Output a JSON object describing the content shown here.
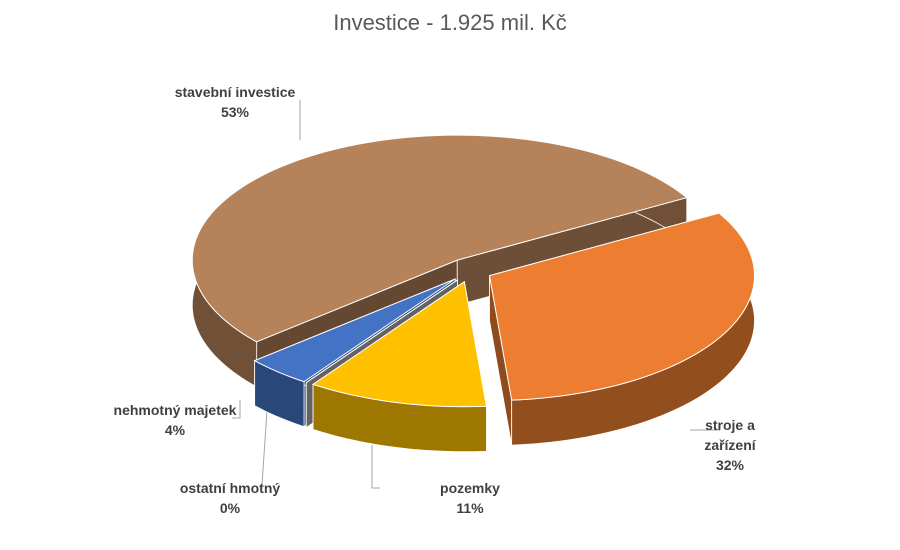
{
  "chart_data": {
    "type": "pie",
    "title": "Investice - 1.925 mil. Kč",
    "categories": [
      "stroje a zařízení",
      "pozemky",
      "ostatní hmotný",
      "nehmotný majetek",
      "stavební investice"
    ],
    "values": [
      32,
      11,
      0,
      4,
      53
    ],
    "value_labels": [
      "32%",
      "11%",
      "0%",
      "4%",
      "53%"
    ],
    "colors": [
      "#ed7d31",
      "#ffc000",
      "#a5a5a5",
      "#4472c4",
      "#b5825a"
    ]
  }
}
